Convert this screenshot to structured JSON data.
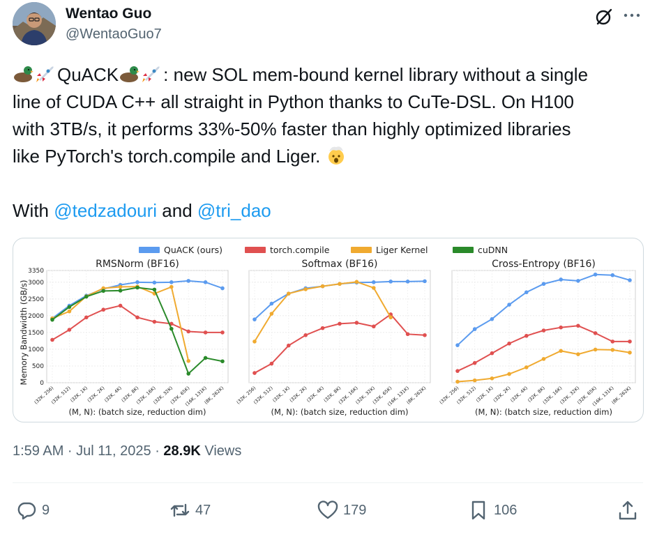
{
  "author": {
    "name": "Wentao Guo",
    "handle": "@WentaoGuo7"
  },
  "tweet": {
    "line1_after_emoji1": "QuACK",
    "line1_rest": ": new SOL mem-bound kernel library without a single",
    "line2": "line of CUDA C++ all straight in Python thanks to CuTe-DSL. On H100",
    "line3": "with 3TB/s, it performs 33%-50% faster than highly optimized libraries",
    "line4": "like PyTorch's torch.compile and Liger.",
    "with_prefix": "With ",
    "mention1": "@tedzadouri",
    "and_text": " and ",
    "mention2": "@tri_dao"
  },
  "meta": {
    "time": "1:59 AM · Jul 11, 2025 · ",
    "views_count": "28.9K",
    "views_label": " Views"
  },
  "actions": {
    "replies": "9",
    "reposts": "47",
    "likes": "179",
    "bookmarks": "106"
  },
  "icons": [
    "grok-icon",
    "more-icon",
    "reply-icon",
    "repost-icon",
    "like-icon",
    "bookmark-icon",
    "share-icon",
    "duck-emoji",
    "rocket-emoji",
    "exploding-head-emoji"
  ],
  "chart_data": {
    "legend": [
      {
        "name": "QuACK (ours)",
        "color": "#5b9bef"
      },
      {
        "name": "torch.compile",
        "color": "#e05050"
      },
      {
        "name": "Liger Kernel",
        "color": "#f0aa30"
      },
      {
        "name": "cuDNN",
        "color": "#2a8a2a"
      }
    ],
    "ylabel": "Memory Bandwidth (GB/s)",
    "yticks": [
      0,
      500,
      1000,
      1500,
      2000,
      2500,
      3000,
      3350
    ],
    "charts": [
      {
        "type": "line",
        "title": "RMSNorm (BF16)",
        "xlabel": "(M, N): (batch size, reduction dim)",
        "categories": [
          "(32K, 256)",
          "(32K, 512)",
          "(32K, 1K)",
          "(32K, 2K)",
          "(32K, 4K)",
          "(32K, 8K)",
          "(32K, 16K)",
          "(32K, 32K)",
          "(32K, 65K)",
          "(16K, 131K)",
          "(8K, 262K)"
        ],
        "series": [
          {
            "name": "QuACK (ours)",
            "values": [
              1920,
              2300,
              2600,
              2800,
              2920,
              3000,
              2990,
              3000,
              3040,
              3000,
              2820
            ]
          },
          {
            "name": "torch.compile",
            "values": [
              1280,
              1580,
              1950,
              2180,
              2300,
              1950,
              1820,
              1760,
              1530,
              1500,
              1500
            ]
          },
          {
            "name": "Liger Kernel",
            "values": [
              1920,
              2130,
              2580,
              2820,
              2860,
              2870,
              2660,
              2860,
              650,
              null,
              null
            ]
          },
          {
            "name": "cuDNN",
            "values": [
              1880,
              2260,
              2570,
              2740,
              2750,
              2840,
              2780,
              1610,
              270,
              740,
              640
            ]
          }
        ]
      },
      {
        "type": "line",
        "title": "Softmax (BF16)",
        "xlabel": "(M, N): (batch size, reduction dim)",
        "categories": [
          "(32K, 256)",
          "(32K, 512)",
          "(32K, 1K)",
          "(32K, 2K)",
          "(32K, 4K)",
          "(32K, 8K)",
          "(32K, 16K)",
          "(32K, 32K)",
          "(32K, 65K)",
          "(16K, 131K)",
          "(8K, 262K)"
        ],
        "series": [
          {
            "name": "QuACK (ours)",
            "values": [
              1890,
              2360,
              2660,
              2820,
              2880,
              2950,
              2990,
              3000,
              3020,
              3020,
              3030
            ]
          },
          {
            "name": "torch.compile",
            "values": [
              290,
              570,
              1110,
              1420,
              1630,
              1760,
              1790,
              1680,
              2040,
              1450,
              1420
            ]
          },
          {
            "name": "Liger Kernel",
            "values": [
              1230,
              2060,
              2660,
              2790,
              2880,
              2950,
              3010,
              2830,
              1950,
              null,
              null
            ]
          }
        ]
      },
      {
        "type": "line",
        "title": "Cross-Entropy (BF16)",
        "xlabel": "(M, N): (batch size, reduction dim)",
        "categories": [
          "(32K, 256)",
          "(32K, 512)",
          "(32K, 1K)",
          "(32K, 2K)",
          "(32K, 4K)",
          "(32K, 8K)",
          "(32K, 16K)",
          "(32K, 32K)",
          "(32K, 65K)",
          "(16K, 131K)",
          "(8K, 262K)"
        ],
        "series": [
          {
            "name": "QuACK (ours)",
            "values": [
              1120,
              1600,
              1900,
              2330,
              2700,
              2950,
              3080,
              3040,
              3230,
              3210,
              3060
            ]
          },
          {
            "name": "torch.compile",
            "values": [
              350,
              590,
              880,
              1170,
              1400,
              1560,
              1650,
              1700,
              1480,
              1230,
              1230
            ]
          },
          {
            "name": "Liger Kernel",
            "values": [
              30,
              70,
              130,
              260,
              460,
              710,
              950,
              850,
              990,
              980,
              900
            ]
          }
        ]
      }
    ]
  }
}
